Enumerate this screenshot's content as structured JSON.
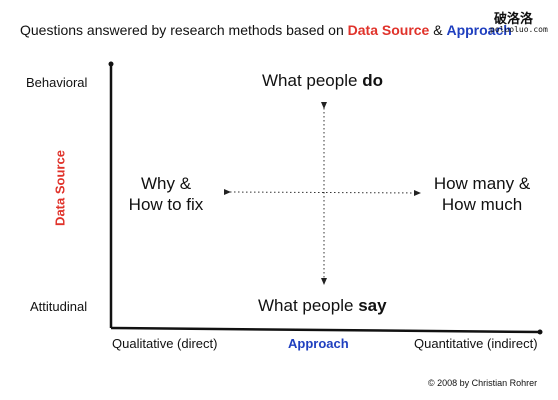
{
  "title": {
    "prefix": "Questions answered by research methods based on ",
    "data_source": "Data Source",
    "amp": " & ",
    "approach": "Approach"
  },
  "watermark": {
    "chinese": "破洛洛",
    "url": "poluoluo.com"
  },
  "y_axis": {
    "title": "Data Source",
    "top_label": "Behavioral",
    "bottom_label": "Attitudinal"
  },
  "x_axis": {
    "title": "Approach",
    "left_label": "Qualitative (direct)",
    "right_label": "Quantitative (indirect)"
  },
  "quadrants": {
    "top": {
      "text": "What people ",
      "emphasis": "do"
    },
    "bottom": {
      "text": "What people ",
      "emphasis": "say"
    },
    "left": {
      "line1": "Why &",
      "line2": "How to fix"
    },
    "right": {
      "line1": "How many &",
      "line2": "How much"
    }
  },
  "copyright": "© 2008 by Christian Rohrer",
  "colors": {
    "data_source": "#e0322a",
    "approach": "#1f3fbf"
  }
}
